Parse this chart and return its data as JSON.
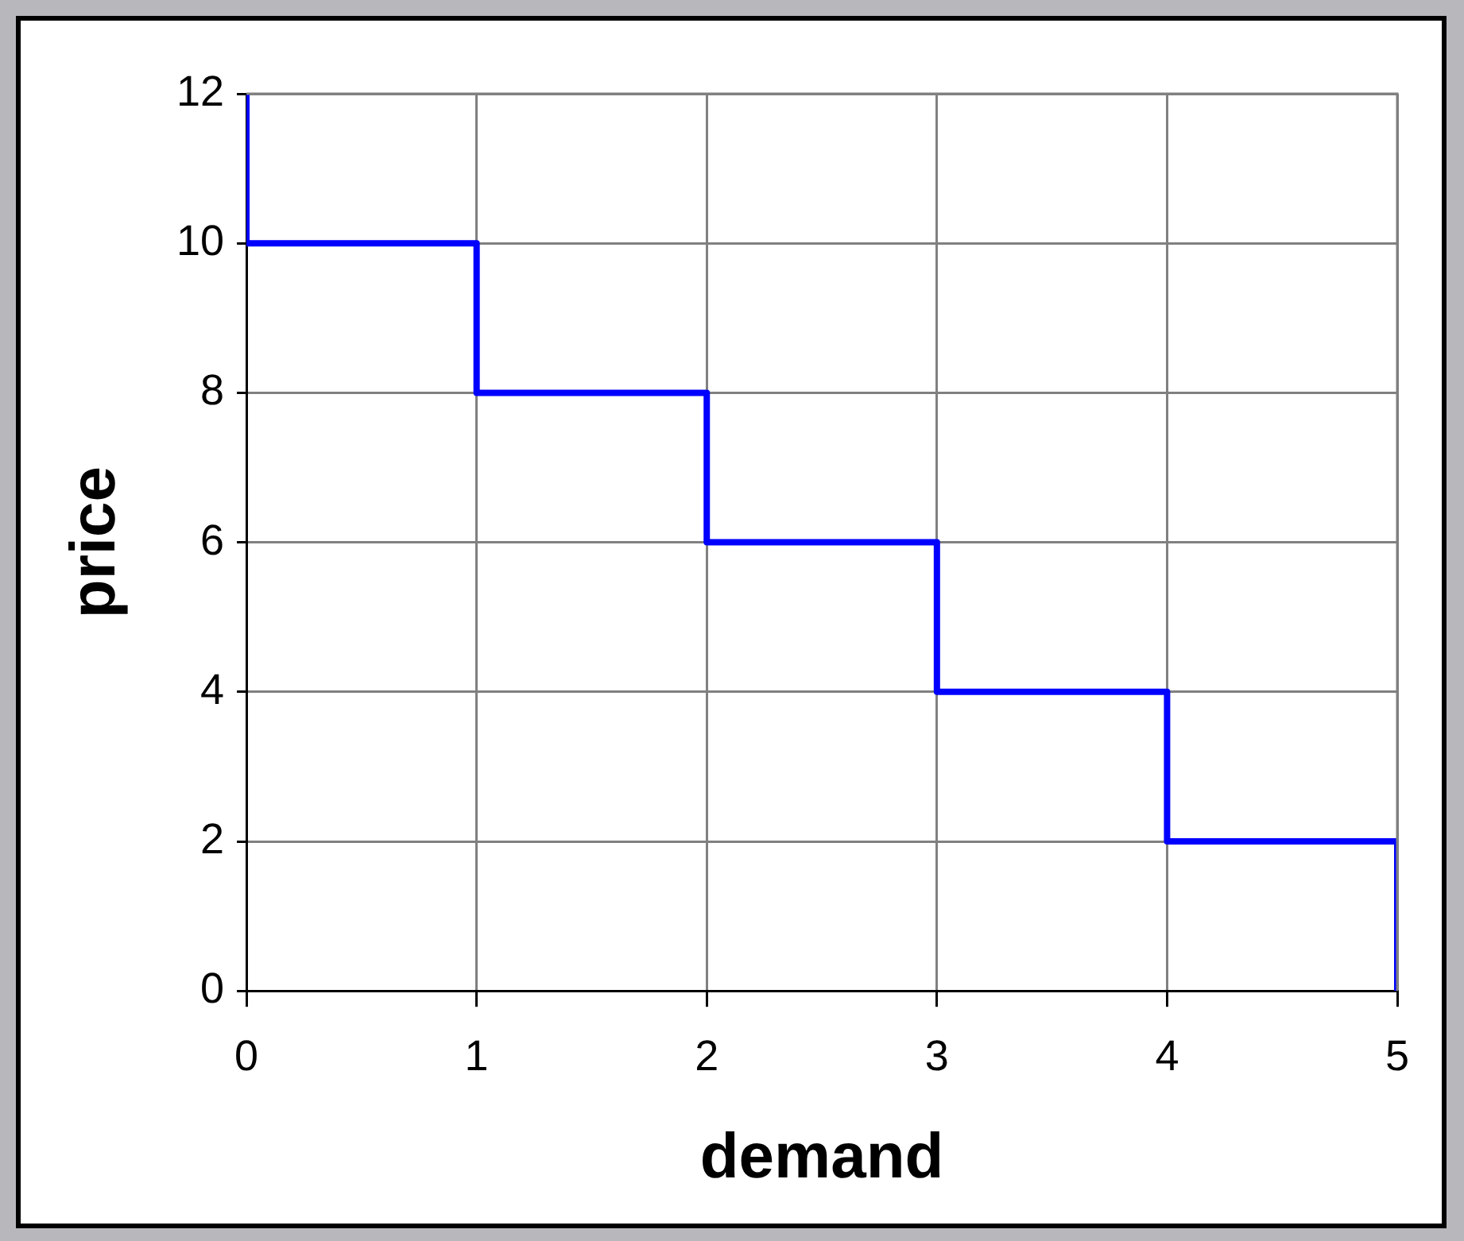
{
  "chart_data": {
    "type": "step",
    "xlabel": "demand",
    "ylabel": "price",
    "x": [
      0,
      0,
      1,
      2,
      3,
      4,
      5
    ],
    "series": [
      {
        "color": "#0000ff",
        "values": [
          12,
          10,
          8,
          6,
          4,
          2,
          0
        ]
      }
    ],
    "xlim": [
      0,
      5
    ],
    "xticks": [
      0,
      1,
      2,
      3,
      4,
      5
    ],
    "ylim": [
      0,
      12
    ],
    "yticks": [
      0,
      2,
      4,
      6,
      8,
      10,
      12
    ],
    "grid": true,
    "legend": false,
    "marker": "none",
    "line_style": "solid"
  }
}
